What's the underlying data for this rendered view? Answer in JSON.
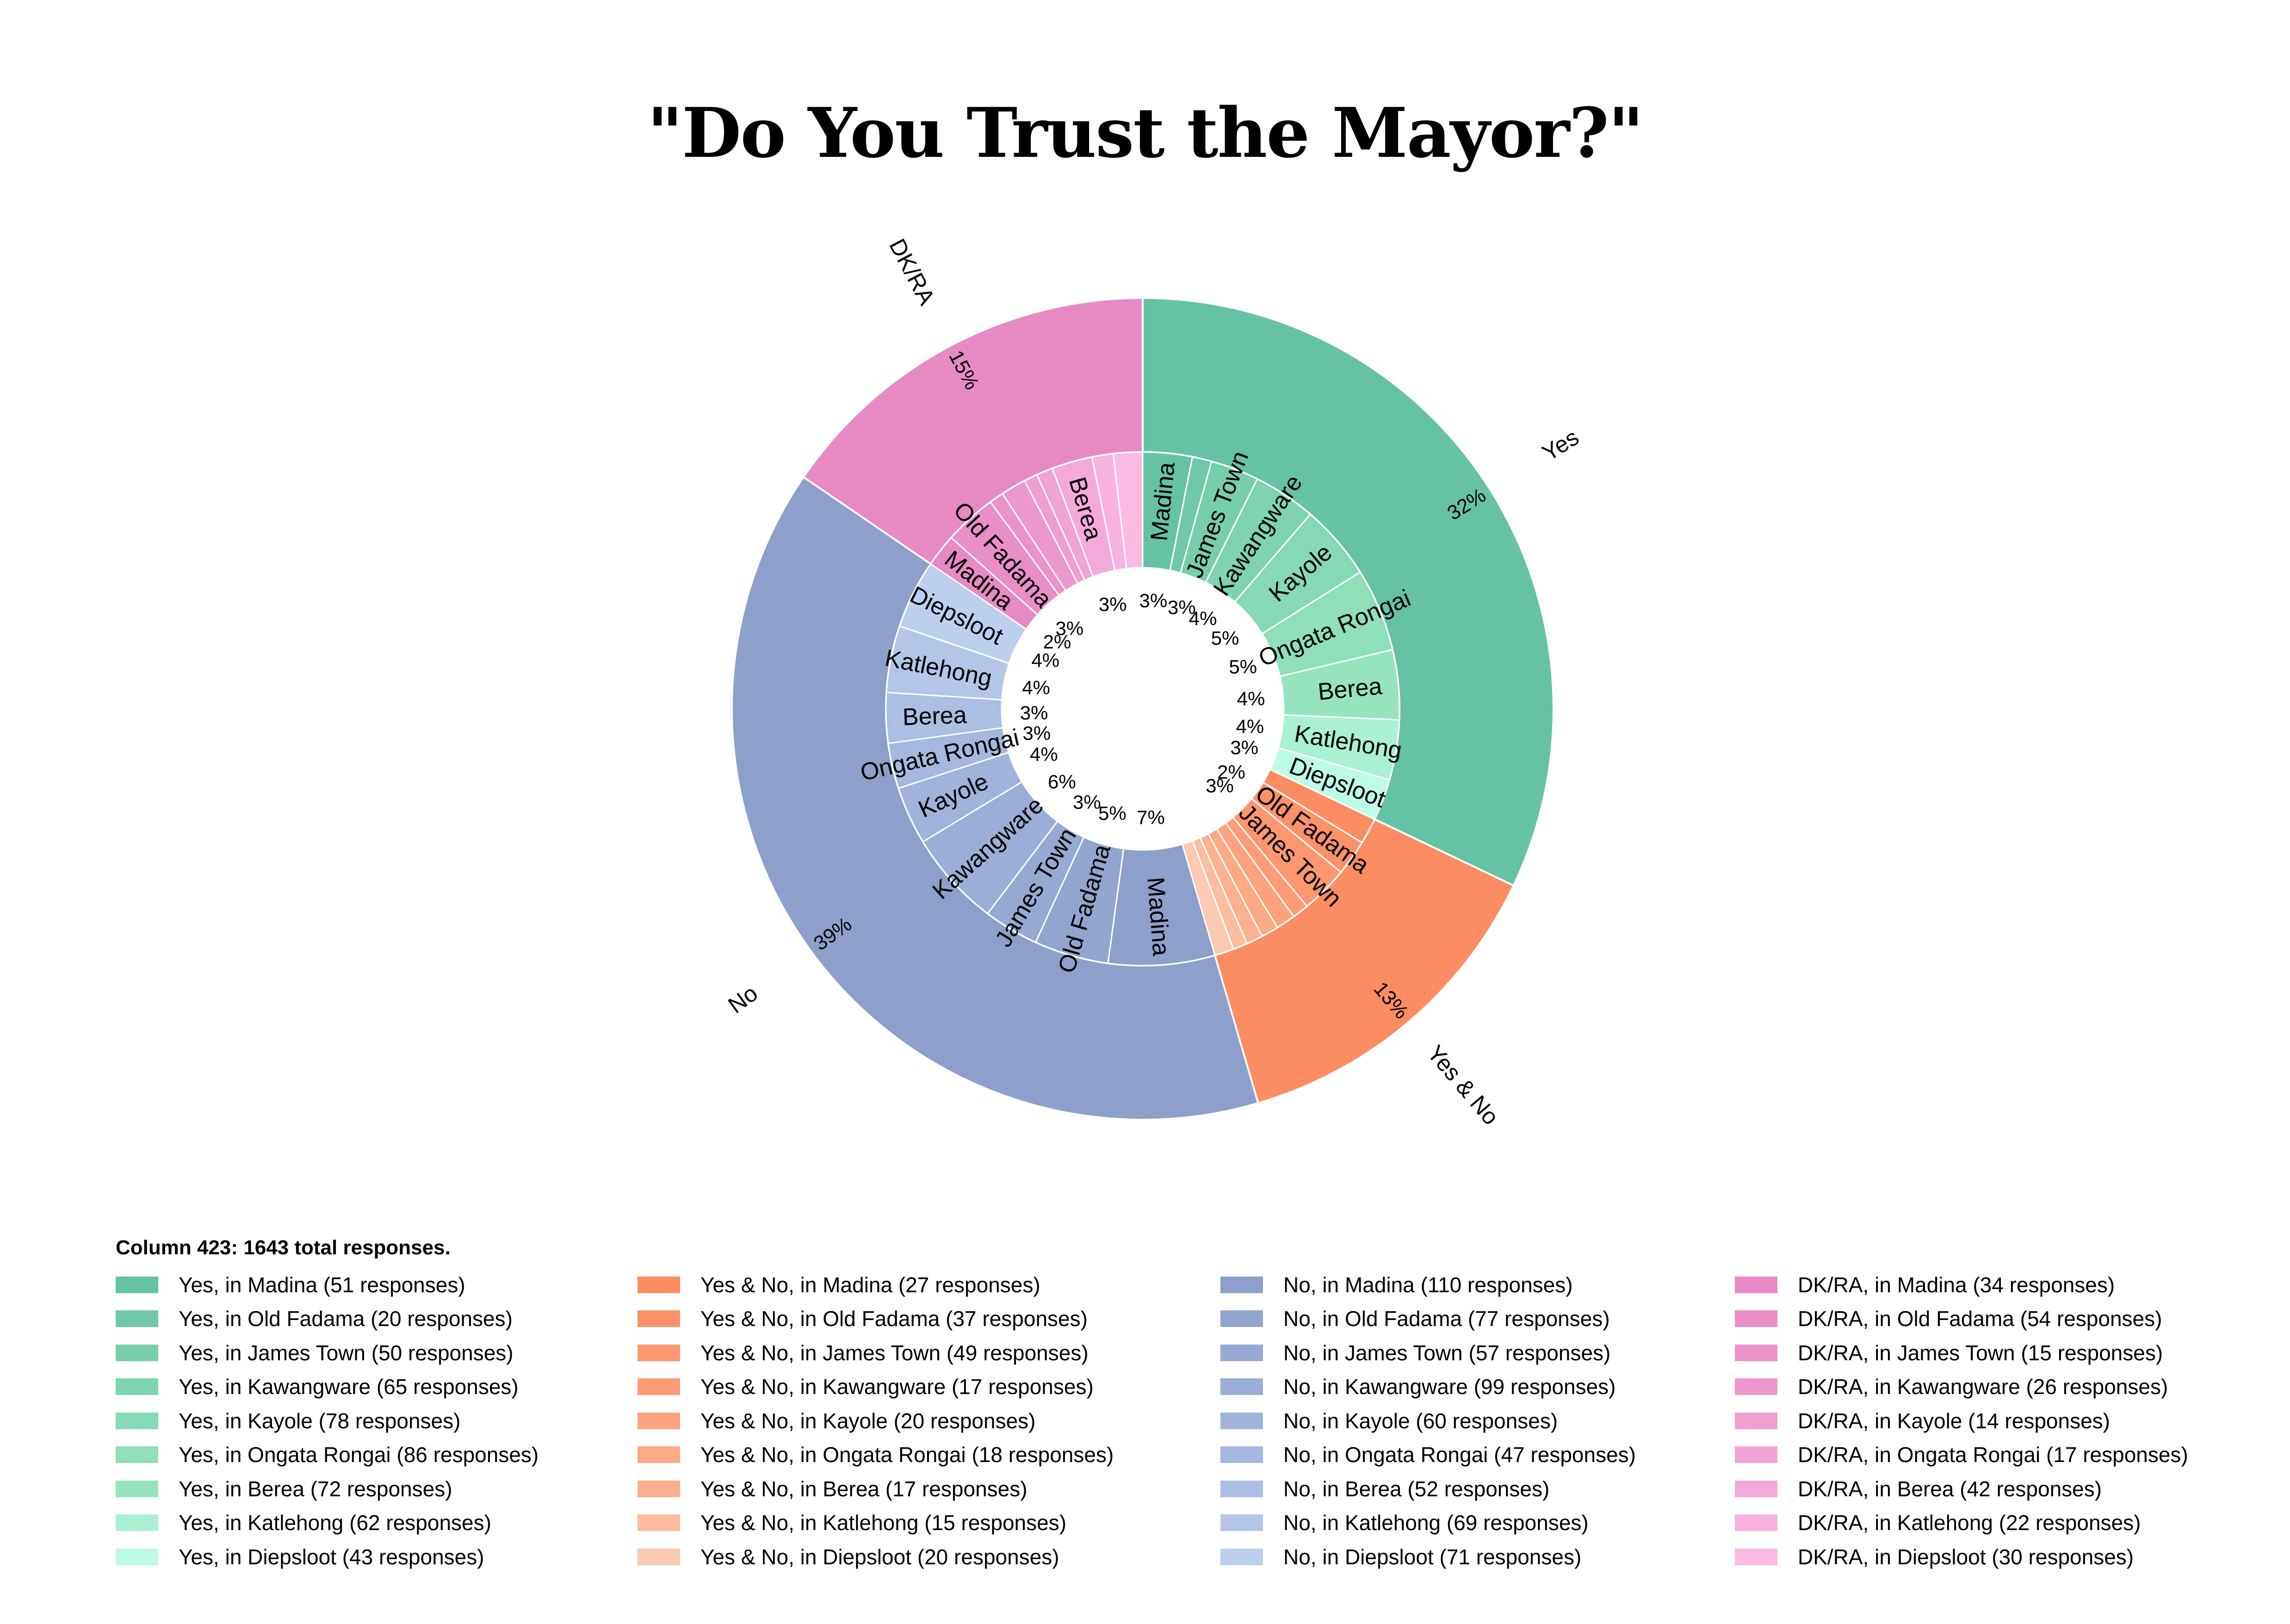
{
  "chart_data": {
    "type": "pie",
    "title": "\"Do You Trust the Mayor?\"",
    "subtitle": "Column 423: 1643 total responses.",
    "total_responses": 1643,
    "locations": [
      "Madina",
      "Old Fadama",
      "James Town",
      "Kawangware",
      "Kayole",
      "Ongata Rongai",
      "Berea",
      "Katlehong",
      "Diepsloot"
    ],
    "series": [
      {
        "name": "Yes",
        "percent_label": "32%",
        "colors": [
          "#66c2a5",
          "#6ec8a9",
          "#76cead",
          "#7ed4b1",
          "#86d9b6",
          "#8edfba",
          "#96e4bf",
          "#a9f0d5",
          "#bdfbe6"
        ],
        "values": [
          51,
          20,
          50,
          65,
          78,
          86,
          72,
          62,
          43
        ],
        "slice_labels": [
          "Madina",
          "",
          "James Town",
          "Kawangware",
          "Kayole",
          "Ongata Rongai",
          "Berea",
          "Katlehong",
          "Diepsloot"
        ],
        "slice_percents": [
          "3%",
          "",
          "3%",
          "4%",
          "5%",
          "5%",
          "4%",
          "4%",
          "3%"
        ]
      },
      {
        "name": "Yes & No",
        "percent_label": "13%",
        "colors": [
          "#fc8d62",
          "#fc9268",
          "#fc976f",
          "#fc9c76",
          "#fca27e",
          "#fca985",
          "#fcb08f",
          "#fcbc9f",
          "#fcc9b1"
        ],
        "values": [
          27,
          37,
          49,
          17,
          20,
          18,
          17,
          15,
          20
        ],
        "slice_labels": [
          "",
          "Old Fadama",
          "James Town",
          "",
          "",
          "",
          "",
          "",
          ""
        ],
        "slice_percents": [
          "",
          "2%",
          "3%",
          "",
          "",
          "",
          "",
          "",
          ""
        ]
      },
      {
        "name": "No",
        "percent_label": "39%",
        "colors": [
          "#8da0cb",
          "#92a5cf",
          "#96a9d3",
          "#9aaed7",
          "#9fb3db",
          "#a5b8df",
          "#abbee4",
          "#b3c6ea",
          "#bccfef"
        ],
        "values": [
          110,
          77,
          57,
          99,
          60,
          47,
          52,
          69,
          71
        ],
        "slice_labels": [
          "Madina",
          "Old Fadama",
          "James Town",
          "Kawangware",
          "Kayole",
          "Ongata Rongai",
          "Berea",
          "Katlehong",
          "Diepsloot"
        ],
        "slice_percents": [
          "7%",
          "5%",
          "3%",
          "6%",
          "4%",
          "3%",
          "3%",
          "4%",
          "4%"
        ]
      },
      {
        "name": "DK/RA",
        "percent_label": "15%",
        "colors": [
          "#e78ac3",
          "#e98ec6",
          "#eb93c9",
          "#ed98cc",
          "#ef9ed0",
          "#f1a3d4",
          "#f4aad9",
          "#f7b3de",
          "#f9bbe2"
        ],
        "values": [
          34,
          54,
          15,
          26,
          14,
          17,
          42,
          22,
          30
        ],
        "slice_labels": [
          "Madina",
          "Old Fadama",
          "",
          "",
          "",
          "",
          "Berea",
          "",
          ""
        ],
        "slice_percents": [
          "2%",
          "3%",
          "",
          "",
          "",
          "",
          "3%",
          "",
          ""
        ]
      }
    ],
    "legend": {
      "heading": "Column 423: 1643 total responses.",
      "columns": [
        [
          "Yes, in Madina (51 responses)",
          "Yes, in Old Fadama (20 responses)",
          "Yes, in James Town (50 responses)",
          "Yes, in Kawangware (65 responses)",
          "Yes, in Kayole (78 responses)",
          "Yes, in Ongata Rongai (86 responses)",
          "Yes, in Berea (72 responses)",
          "Yes, in Katlehong (62 responses)",
          "Yes, in Diepsloot (43 responses)"
        ],
        [
          "Yes & No, in Madina (27 responses)",
          "Yes & No, in Old Fadama (37 responses)",
          "Yes & No, in James Town (49 responses)",
          "Yes & No, in Kawangware (17 responses)",
          "Yes & No, in Kayole (20 responses)",
          "Yes & No, in Ongata Rongai (18 responses)",
          "Yes & No, in Berea (17 responses)",
          "Yes & No, in Katlehong (15 responses)",
          "Yes & No, in Diepsloot (20 responses)"
        ],
        [
          "No, in Madina (110 responses)",
          "No, in Old Fadama (77 responses)",
          "No, in James Town (57 responses)",
          "No, in Kawangware (99 responses)",
          "No, in Kayole (60 responses)",
          "No, in Ongata Rongai (47 responses)",
          "No, in Berea (52 responses)",
          "No, in Katlehong (69 responses)",
          "No, in Diepsloot (71 responses)"
        ],
        [
          "DK/RA, in Madina (34 responses)",
          "DK/RA, in Old Fadama (54 responses)",
          "DK/RA, in James Town (15 responses)",
          "DK/RA, in Kawangware (26 responses)",
          "DK/RA, in Kayole (14 responses)",
          "DK/RA, in Ongata Rongai (17 responses)",
          "DK/RA, in Berea (42 responses)",
          "DK/RA, in Katlehong (22 responses)",
          "DK/RA, in Diepsloot (30 responses)"
        ]
      ]
    }
  }
}
